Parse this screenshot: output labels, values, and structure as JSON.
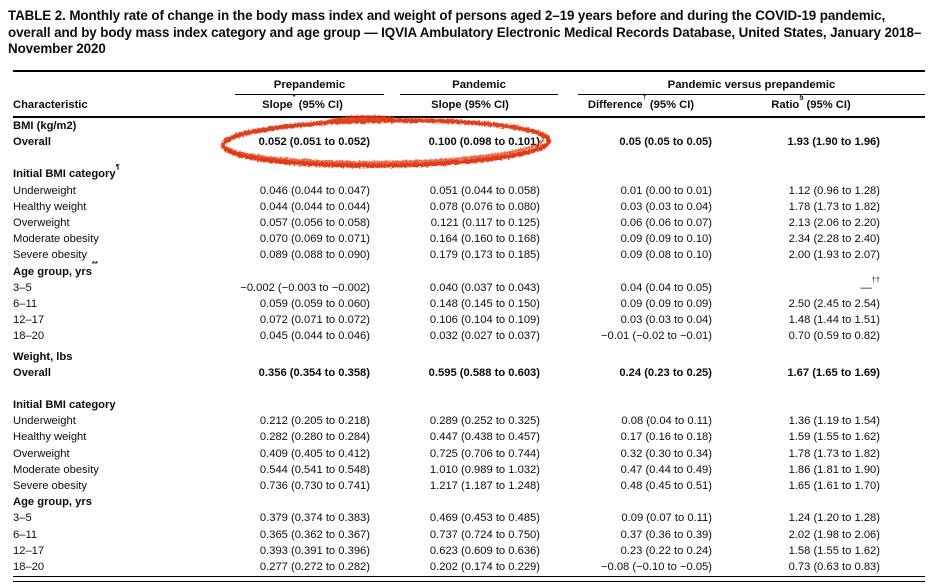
{
  "title": "TABLE 2. Monthly rate of change in the body mass index and weight of persons aged 2–19 years before and during the COVID-19 pandemic, overall and by body mass index category and age group — IQVIA Ambulatory Electronic Medical Records Database, United States, January 2018–November 2020",
  "headers": {
    "characteristic": "Characteristic",
    "groups": {
      "prepandemic": "Prepandemic",
      "pandemic": "Pandemic",
      "pandemic_vs_prepandemic": "Pandemic versus prepandemic"
    },
    "columns": {
      "slope_pre": {
        "base": "Slope",
        "sup": "*",
        "rest": " (95% CI)"
      },
      "slope_pan": {
        "base": "Slope",
        "sup": "",
        "rest": " (95% CI)"
      },
      "difference": {
        "base": "Difference",
        "sup": "†",
        "rest": " (95% CI)"
      },
      "ratio": {
        "base": "Ratio",
        "sup": "§",
        "rest": " (95% CI)"
      }
    }
  },
  "annotation": {
    "type": "hand-drawn-ellipse",
    "color": "#e13a18",
    "circled_values": [
      "0.052 (0.051 to 0.052)",
      "0.100 (0.098 to 0.101)"
    ]
  },
  "table": {
    "sections": [
      {
        "heading": {
          "text": "BMI (kg/m2)",
          "sup": ""
        },
        "rows": [
          {
            "label": "Overall",
            "bold": true,
            "gap_after": true,
            "values": [
              "0.052 (0.051 to 0.052)",
              "0.100 (0.098 to 0.101)",
              "0.05 (0.05 to 0.05)",
              "1.93 (1.90 to 1.96)"
            ]
          }
        ]
      },
      {
        "heading": {
          "text": "Initial BMI category",
          "sup": "¶"
        },
        "rows": [
          {
            "label": "Underweight",
            "values": [
              "0.046 (0.044 to 0.047)",
              "0.051 (0.044 to 0.058)",
              "0.01 (0.00 to 0.01)",
              "1.12 (0.96 to 1.28)"
            ]
          },
          {
            "label": "Healthy weight",
            "values": [
              "0.044 (0.044 to 0.044)",
              "0.078 (0.076 to 0.080)",
              "0.03 (0.03 to 0.04)",
              "1.78 (1.73 to 1.82)"
            ]
          },
          {
            "label": "Overweight",
            "values": [
              "0.057 (0.056 to 0.058)",
              "0.121 (0.117 to 0.125)",
              "0.06 (0.06 to 0.07)",
              "2.13 (2.06 to 2.20)"
            ]
          },
          {
            "label": "Moderate obesity",
            "values": [
              "0.070 (0.069 to 0.071)",
              "0.164 (0.160 to 0.168)",
              "0.09 (0.09 to 0.10)",
              "2.34 (2.28 to 2.40)"
            ]
          },
          {
            "label": "Severe obesity",
            "values": [
              "0.089 (0.088 to 0.090)",
              "0.179 (0.173 to 0.185)",
              "0.09 (0.08 to 0.10)",
              "2.00 (1.93 to 2.07)"
            ]
          }
        ]
      },
      {
        "heading": {
          "text": "Age group, yrs",
          "sup": "**"
        },
        "rows": [
          {
            "label": "3–5",
            "values": [
              "−0.002 (−0.003 to −0.002)",
              "0.040 (0.037 to 0.043)",
              "0.04 (0.04 to 0.05)",
              {
                "text": "—",
                "sup": "††"
              }
            ]
          },
          {
            "label": "6–11",
            "values": [
              "0.059 (0.059 to 0.060)",
              "0.148 (0.145 to 0.150)",
              "0.09 (0.09 to 0.09)",
              "2.50 (2.45 to 2.54)"
            ]
          },
          {
            "label": "12–17",
            "values": [
              "0.072 (0.071 to 0.072)",
              "0.106 (0.104 to 0.109)",
              "0.03 (0.03 to 0.04)",
              "1.48 (1.44 to 1.51)"
            ]
          },
          {
            "label": "18–20",
            "values": [
              "0.045 (0.044 to 0.046)",
              "0.032 (0.027 to 0.037)",
              "−0.01 (−0.02 to −0.01)",
              "0.70 (0.59 to 0.82)"
            ]
          }
        ]
      },
      {
        "heading": {
          "text": "Weight, lbs",
          "sup": ""
        },
        "space_before": true,
        "rows": [
          {
            "label": "Overall",
            "bold": true,
            "gap_after": true,
            "values": [
              "0.356 (0.354 to 0.358)",
              "0.595 (0.588 to 0.603)",
              "0.24 (0.23 to 0.25)",
              "1.67 (1.65 to 1.69)"
            ]
          }
        ]
      },
      {
        "heading": {
          "text": "Initial BMI category",
          "sup": ""
        },
        "rows": [
          {
            "label": "Underweight",
            "values": [
              "0.212 (0.205 to 0.218)",
              "0.289 (0.252 to 0.325)",
              "0.08 (0.04 to 0.11)",
              "1.36 (1.19 to 1.54)"
            ]
          },
          {
            "label": "Healthy weight",
            "values": [
              "0.282 (0.280 to 0.284)",
              "0.447 (0.438 to 0.457)",
              "0.17 (0.16 to 0.18)",
              "1.59 (1.55 to 1.62)"
            ]
          },
          {
            "label": "Overweight",
            "values": [
              "0.409 (0.405 to 0.412)",
              "0.725 (0.706 to 0.744)",
              "0.32 (0.30 to 0.34)",
              "1.78 (1.73 to 1.82)"
            ]
          },
          {
            "label": "Moderate obesity",
            "values": [
              "0.544 (0.541 to 0.548)",
              "1.010 (0.989 to 1.032)",
              "0.47 (0.44 to 0.49)",
              "1.86 (1.81 to 1.90)"
            ]
          },
          {
            "label": "Severe obesity",
            "values": [
              "0.736 (0.730 to 0.741)",
              "1.217 (1.187 to 1.248)",
              "0.48 (0.45 to 0.51)",
              "1.65 (1.61 to 1.70)"
            ]
          }
        ]
      },
      {
        "heading": {
          "text": "Age group, yrs",
          "sup": ""
        },
        "rows": [
          {
            "label": "3–5",
            "values": [
              "0.379 (0.374 to 0.383)",
              "0.469 (0.453 to 0.485)",
              "0.09 (0.07 to 0.11)",
              "1.24 (1.20 to 1.28)"
            ]
          },
          {
            "label": "6–11",
            "values": [
              "0.365 (0.362 to 0.367)",
              "0.737 (0.724 to 0.750)",
              "0.37 (0.36 to 0.39)",
              "2.02 (1.98 to 2.06)"
            ]
          },
          {
            "label": "12–17",
            "values": [
              "0.393 (0.391 to 0.396)",
              "0.623 (0.609 to 0.636)",
              "0.23 (0.22 to 0.24)",
              "1.58 (1.55 to 1.62)"
            ]
          },
          {
            "label": "18–20",
            "values": [
              "0.277 (0.272 to 0.282)",
              "0.202 (0.174 to 0.229)",
              "−0.08 (−0.10 to −0.05)",
              "0.73 (0.63 to 0.83)"
            ]
          }
        ]
      }
    ]
  }
}
